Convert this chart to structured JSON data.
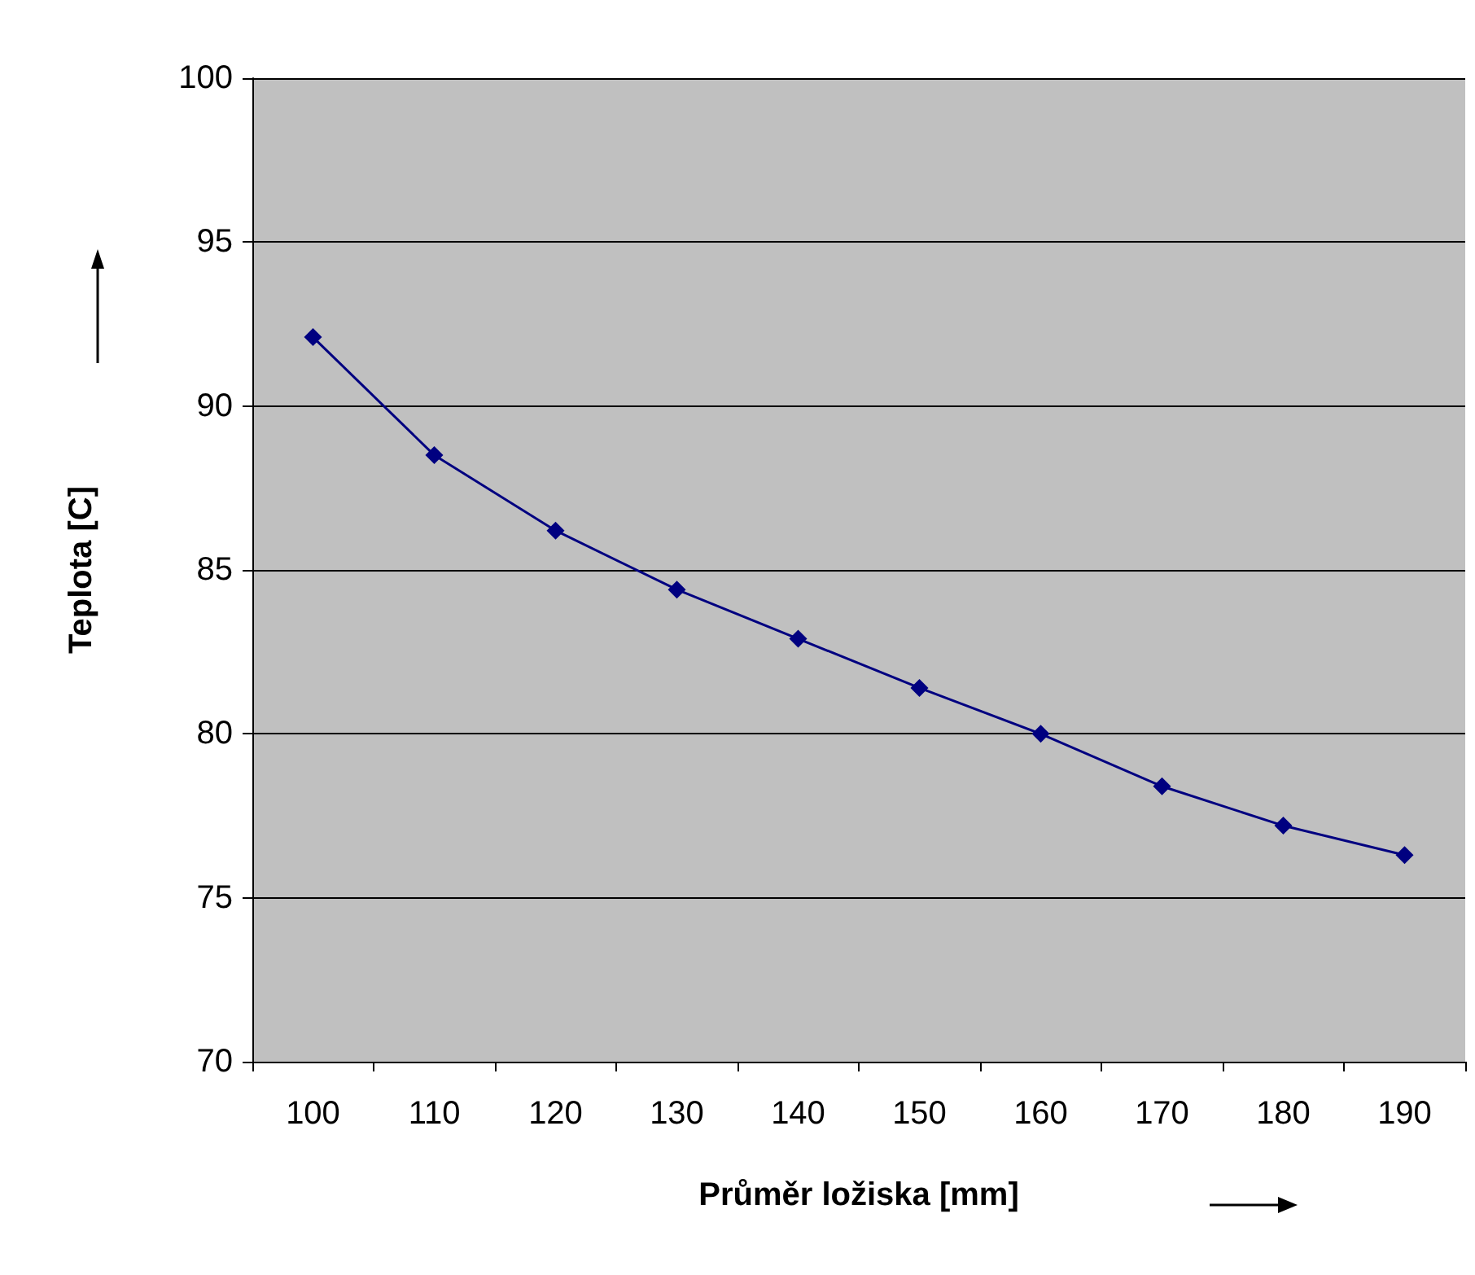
{
  "chart_data": {
    "type": "line",
    "xlabel": "Průměr ložiska [mm]",
    "ylabel": "Teplota [C]",
    "categories": [
      "100",
      "110",
      "120",
      "130",
      "140",
      "150",
      "160",
      "170",
      "180",
      "190"
    ],
    "series": [
      {
        "color": "#000080",
        "values": [
          92.1,
          88.5,
          86.2,
          84.4,
          82.9,
          81.4,
          80.0,
          78.4,
          77.2,
          76.3
        ]
      }
    ],
    "ylim": [
      70,
      100
    ],
    "yticks": [
      70,
      75,
      80,
      85,
      90,
      95,
      100
    ],
    "grid": "y",
    "marker": "diamond",
    "line_style": "solid"
  }
}
